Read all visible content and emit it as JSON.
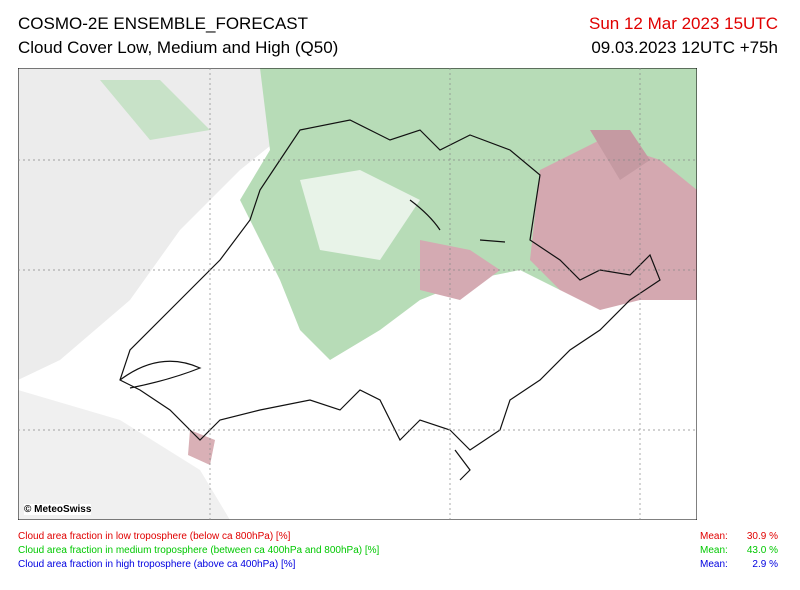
{
  "header": {
    "title": "COSMO-2E ENSEMBLE_FORECAST",
    "subtitle": "Cloud Cover Low, Medium and High (Q50)",
    "valid_time": "Sun 12 Mar 2023 15UTC",
    "run_time": "09.03.2023 12UTC +75h"
  },
  "map": {
    "copyright": "© MeteoSwiss"
  },
  "legend": [
    {
      "text": "Cloud area fraction in low troposphere (below ca 800hPa) [%]",
      "mean_label": "Mean:",
      "mean": "30.9 %"
    },
    {
      "text": "Cloud area fraction in medium troposphere (between ca 400hPa and 800hPa) [%]",
      "mean_label": "Mean:",
      "mean": "43.0 %"
    },
    {
      "text": "Cloud area fraction in high troposphere (above ca 400hPa) [%]",
      "mean_label": "Mean:",
      "mean": "2.9 %"
    }
  ]
}
